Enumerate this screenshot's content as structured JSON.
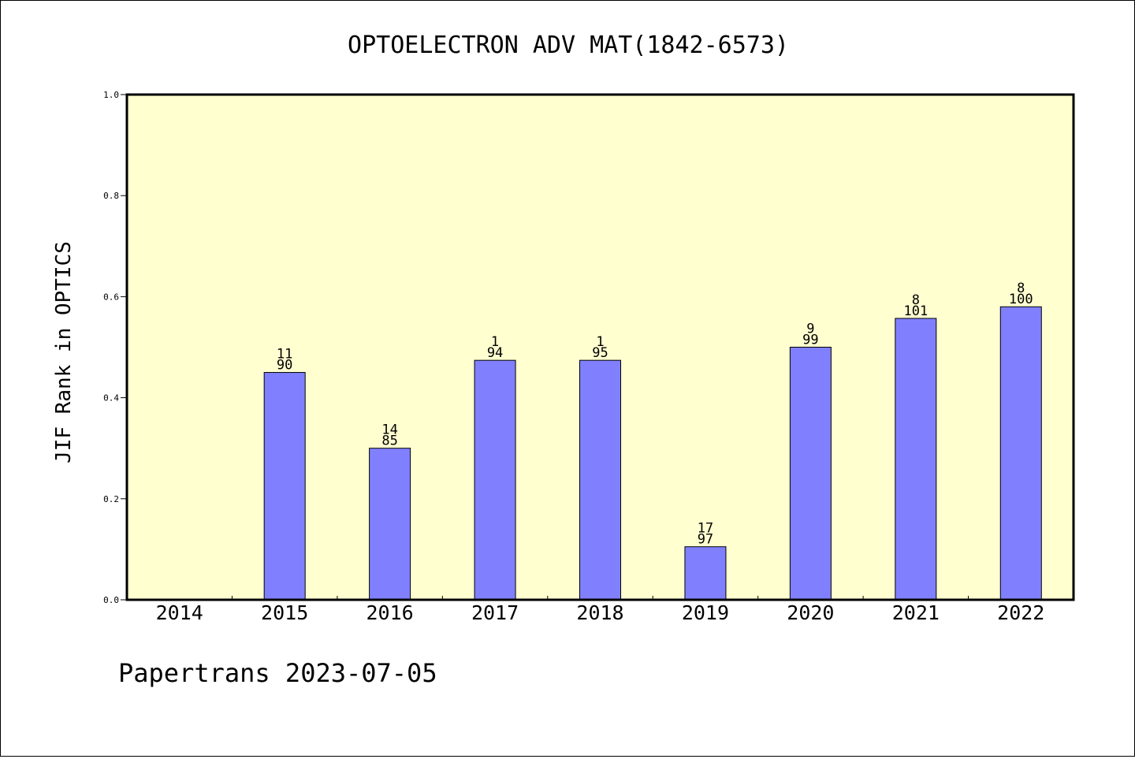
{
  "chart_data": {
    "type": "bar",
    "title": "OPTOELECTRON ADV MAT(1842-6573)",
    "xlabel": "",
    "ylabel": "JIF Rank in OPTICS",
    "footer": "Papertrans 2023-07-05",
    "ylim": [
      0,
      1.0
    ],
    "yticks": [
      "0.0",
      "0.2",
      "0.4",
      "0.6",
      "0.8",
      "1.0"
    ],
    "categories": [
      "2014",
      "2015",
      "2016",
      "2017",
      "2018",
      "2019",
      "2020",
      "2021",
      "2022"
    ],
    "values": [
      null,
      0.45,
      0.3,
      0.474,
      0.474,
      0.105,
      0.5,
      0.557,
      0.58
    ],
    "labels": [
      [
        "",
        ""
      ],
      [
        "11",
        "90"
      ],
      [
        "14",
        "85"
      ],
      [
        "1",
        "94"
      ],
      [
        "1",
        "95"
      ],
      [
        "17",
        "97"
      ],
      [
        "9",
        "99"
      ],
      [
        "8",
        "101"
      ],
      [
        "8",
        "100"
      ]
    ],
    "grid": false,
    "colors": {
      "plot_background": "#ffffd0",
      "bar_fill": "#8080ff",
      "bar_stroke": "#000000"
    }
  }
}
